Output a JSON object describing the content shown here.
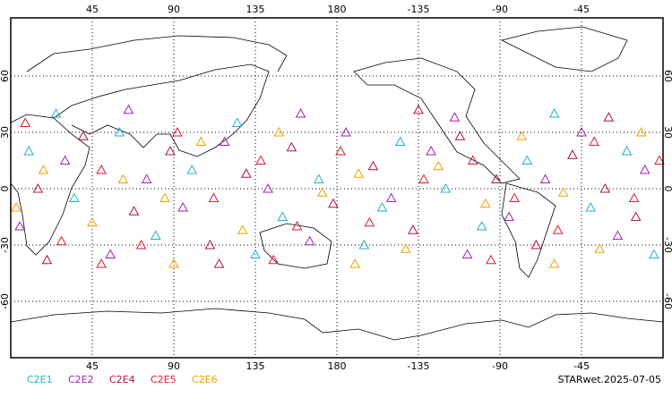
{
  "chart_data": {
    "type": "map-scatter",
    "xlim": [
      0,
      360
    ],
    "ylim": [
      -90,
      90
    ],
    "xticks": [
      45,
      90,
      135,
      180,
      {
        "value": 225,
        "label": "-135"
      },
      {
        "value": 270,
        "label": "-90"
      },
      {
        "value": 315,
        "label": "-45"
      }
    ],
    "yticks": [
      60,
      30,
      0,
      -30,
      -60
    ],
    "grid": true,
    "series": [
      {
        "name": "C2E1",
        "color": "#20b0c8",
        "points": [
          [
            10,
            20
          ],
          [
            35,
            -5
          ],
          [
            60,
            30
          ],
          [
            80,
            -25
          ],
          [
            100,
            10
          ],
          [
            125,
            35
          ],
          [
            150,
            -15
          ],
          [
            170,
            5
          ],
          [
            195,
            -30
          ],
          [
            215,
            25
          ],
          [
            240,
            0
          ],
          [
            260,
            -20
          ],
          [
            285,
            15
          ],
          [
            300,
            40
          ],
          [
            320,
            -10
          ],
          [
            340,
            20
          ],
          [
            355,
            -35
          ],
          [
            25,
            40
          ],
          [
            135,
            -35
          ],
          [
            205,
            -10
          ]
        ]
      },
      {
        "name": "C2E2",
        "color": "#a020b0",
        "points": [
          [
            5,
            -20
          ],
          [
            30,
            15
          ],
          [
            55,
            -35
          ],
          [
            75,
            5
          ],
          [
            95,
            -10
          ],
          [
            118,
            25
          ],
          [
            142,
            0
          ],
          [
            165,
            -28
          ],
          [
            185,
            30
          ],
          [
            210,
            -5
          ],
          [
            232,
            20
          ],
          [
            252,
            -35
          ],
          [
            275,
            -15
          ],
          [
            295,
            5
          ],
          [
            315,
            30
          ],
          [
            335,
            -25
          ],
          [
            350,
            10
          ],
          [
            65,
            42
          ],
          [
            160,
            40
          ],
          [
            245,
            38
          ]
        ]
      },
      {
        "name": "C2E4",
        "color": "#b01040",
        "points": [
          [
            15,
            0
          ],
          [
            40,
            28
          ],
          [
            68,
            -12
          ],
          [
            88,
            20
          ],
          [
            110,
            -30
          ],
          [
            130,
            8
          ],
          [
            155,
            22
          ],
          [
            178,
            -8
          ],
          [
            200,
            12
          ],
          [
            222,
            -22
          ],
          [
            248,
            28
          ],
          [
            268,
            5
          ],
          [
            290,
            -30
          ],
          [
            310,
            18
          ],
          [
            328,
            0
          ],
          [
            345,
            -15
          ],
          [
            20,
            -38
          ],
          [
            115,
            -40
          ],
          [
            225,
            42
          ],
          [
            330,
            38
          ]
        ]
      },
      {
        "name": "C2E5",
        "color": "#e01830",
        "points": [
          [
            8,
            35
          ],
          [
            28,
            -28
          ],
          [
            50,
            10
          ],
          [
            72,
            -30
          ],
          [
            92,
            30
          ],
          [
            112,
            -5
          ],
          [
            138,
            15
          ],
          [
            158,
            -20
          ],
          [
            182,
            20
          ],
          [
            198,
            -18
          ],
          [
            228,
            5
          ],
          [
            255,
            15
          ],
          [
            278,
            -5
          ],
          [
            302,
            -22
          ],
          [
            322,
            25
          ],
          [
            344,
            -5
          ],
          [
            358,
            15
          ],
          [
            145,
            -38
          ],
          [
            265,
            -38
          ],
          [
            50,
            -40
          ]
        ]
      },
      {
        "name": "C2E6",
        "color": "#f0a000",
        "points": [
          [
            18,
            10
          ],
          [
            45,
            -18
          ],
          [
            62,
            5
          ],
          [
            85,
            -5
          ],
          [
            105,
            25
          ],
          [
            128,
            -22
          ],
          [
            148,
            30
          ],
          [
            172,
            -2
          ],
          [
            192,
            8
          ],
          [
            218,
            -32
          ],
          [
            236,
            12
          ],
          [
            262,
            -8
          ],
          [
            282,
            28
          ],
          [
            305,
            -2
          ],
          [
            325,
            -32
          ],
          [
            348,
            30
          ],
          [
            3,
            -10
          ],
          [
            90,
            -40
          ],
          [
            190,
            -40
          ],
          [
            300,
            -40
          ]
        ]
      }
    ],
    "credit": "STARwet.2025-07-05"
  }
}
